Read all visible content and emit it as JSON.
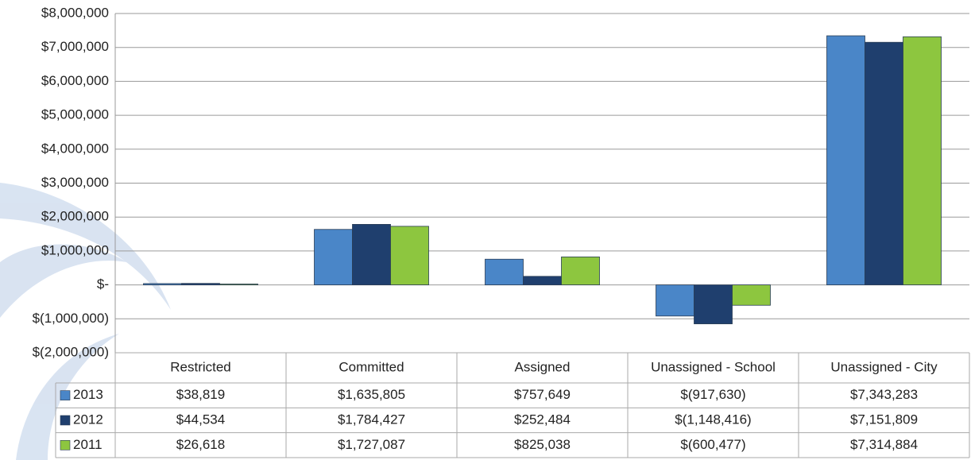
{
  "chart_data": {
    "type": "bar",
    "categories": [
      "Restricted",
      "Committed",
      "Assigned",
      "Unassigned - School",
      "Unassigned - City"
    ],
    "series": [
      {
        "name": "2013",
        "color": "#4a86c8",
        "values": [
          38819,
          1635805,
          757649,
          -917630,
          7343283
        ],
        "value_labels": [
          "$38,819",
          "$1,635,805",
          "$757,649",
          "$(917,630)",
          "$7,343,283"
        ]
      },
      {
        "name": "2012",
        "color": "#1f3f6e",
        "values": [
          44534,
          1784427,
          252484,
          -1148416,
          7151809
        ],
        "value_labels": [
          "$44,534",
          "$1,784,427",
          "$252,484",
          "$(1,148,416)",
          "$7,151,809"
        ]
      },
      {
        "name": "2011",
        "color": "#8dc63f",
        "values": [
          26618,
          1727087,
          825038,
          -600477,
          7314884
        ],
        "value_labels": [
          "$26,618",
          "$1,727,087",
          "$825,038",
          "$(600,477)",
          "$7,314,884"
        ]
      }
    ],
    "ylim": [
      -2000000,
      8000000
    ],
    "yticks": [
      {
        "value": 8000000,
        "label": "$8,000,000"
      },
      {
        "value": 7000000,
        "label": "$7,000,000"
      },
      {
        "value": 6000000,
        "label": "$6,000,000"
      },
      {
        "value": 5000000,
        "label": "$5,000,000"
      },
      {
        "value": 4000000,
        "label": "$4,000,000"
      },
      {
        "value": 3000000,
        "label": "$3,000,000"
      },
      {
        "value": 2000000,
        "label": "$2,000,000"
      },
      {
        "value": 1000000,
        "label": "$1,000,000"
      },
      {
        "value": 0,
        "label": "$-"
      },
      {
        "value": -1000000,
        "label": "$(1,000,000)"
      },
      {
        "value": -2000000,
        "label": "$(2,000,000)"
      }
    ],
    "grid": true
  }
}
